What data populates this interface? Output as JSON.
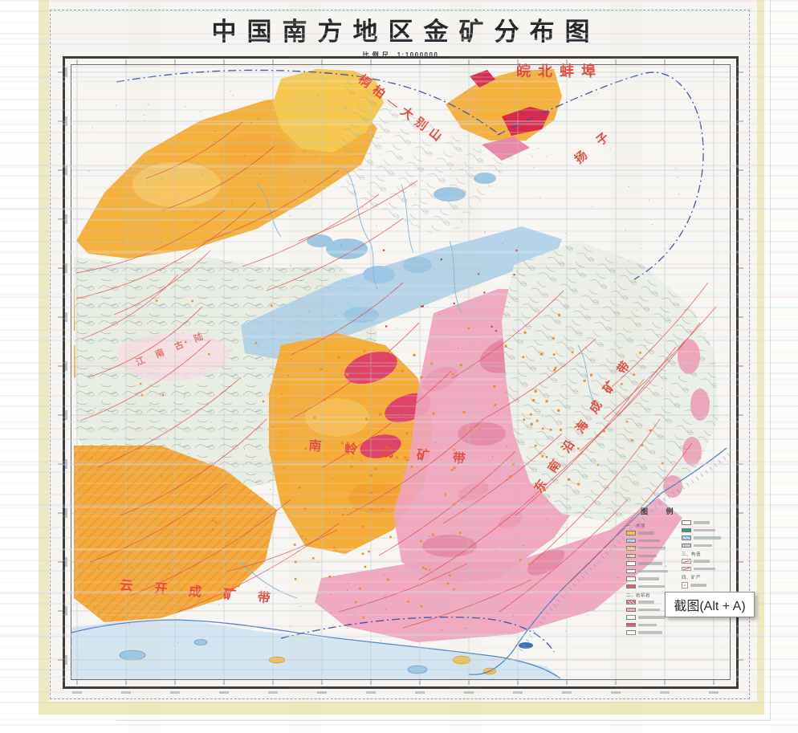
{
  "map_sheet": {
    "title": "中国南方地区金矿分布图",
    "scale_label": "比例尺",
    "scale_value": "1:1000000",
    "region_labels": {
      "wanbei": "皖北蚌埠",
      "tongbai_dabieshan": "桐柏—大别山",
      "yangzi": "扬子",
      "jiangnan": "江南古陆",
      "nanling": "南岭成矿带",
      "dongnan_coast": "东南沿海成矿带",
      "yunkai": "云开成矿带"
    },
    "legend": {
      "title": "图 例",
      "columns": [
        {
          "groups": [
            {
              "heading": "一、地层",
              "items": [
                {
                  "color": "#f2c14e",
                  "style": "solid"
                },
                {
                  "color": "#b9d8ea",
                  "style": "dotted"
                },
                {
                  "color": "#f2a944",
                  "style": "hatch"
                },
                {
                  "color": "#ead9b6",
                  "style": "dotted"
                },
                {
                  "color": "#f8e7c8",
                  "style": "outline"
                },
                {
                  "color": "#f7dcae",
                  "style": "outline"
                },
                {
                  "color": "#f4d2a0",
                  "style": "outline"
                },
                {
                  "color": "#e25c66",
                  "style": "solid"
                }
              ]
            },
            {
              "heading": "二、岩浆岩",
              "items": [
                {
                  "color": "#df5580",
                  "style": "hatch"
                },
                {
                  "color": "#f2afc2",
                  "style": "solid"
                },
                {
                  "color": "#f0f1ee",
                  "style": "outline"
                },
                {
                  "color": "#e0506a",
                  "style": "solid"
                },
                {
                  "color": "#f2b4c4",
                  "style": "outline"
                }
              ]
            }
          ]
        },
        {
          "groups": [
            {
              "heading": "",
              "items": [
                {
                  "color": "#f4c3cf",
                  "style": "outline"
                },
                {
                  "color": "#2ea077",
                  "style": "solid"
                },
                {
                  "color": "#8cc0dc",
                  "style": "hatch"
                },
                {
                  "color": "#ccd3d6",
                  "style": "dotted"
                }
              ]
            },
            {
              "heading": "三、构造",
              "items": [
                {
                  "color": "#e05050",
                  "style": "line"
                },
                {
                  "color": "#e05050",
                  "style": "line"
                }
              ]
            },
            {
              "heading": "四、矿产",
              "items": [
                {
                  "color": "#f59c3a",
                  "style": "square"
                },
                {
                  "color": "#f59c3a",
                  "style": "square"
                },
                {
                  "color": "#e05050",
                  "style": "square"
                },
                {
                  "color": "#f59c3a",
                  "style": "square"
                }
              ]
            }
          ]
        }
      ]
    },
    "palette": {
      "orange_strata": "#f5b13e",
      "yellow_strata": "#f7c84f",
      "pink_granite": "#efa2bc",
      "crimson_granite": "#dd4468",
      "red_volcanics": "#d62b4b",
      "blue_strata": "#a9cee6",
      "celadon_strata": "#e9eee4",
      "sea_blue": "#d3e5f0",
      "fault_red": "#e05050",
      "boundary_blue": "#4553a8",
      "label_red": "#e14b41"
    }
  },
  "overlay_tooltip": {
    "text": "截图(Alt + A)"
  }
}
